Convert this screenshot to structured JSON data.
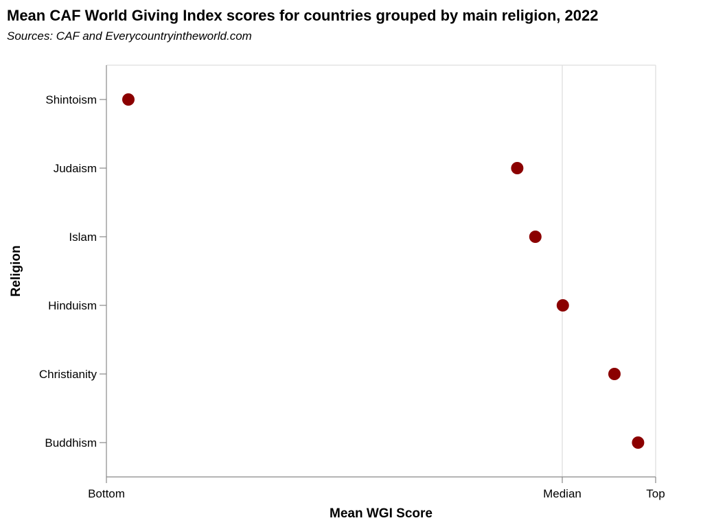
{
  "chart_data": {
    "type": "scatter",
    "title": "Mean CAF World Giving Index scores for countries grouped by main religion, 2022",
    "subtitle": "Sources: CAF and Everycountryintheworld.com",
    "xlabel": "Mean WGI Score",
    "ylabel": "Religion",
    "x_ticks": [
      {
        "label": "Bottom",
        "value": 0
      },
      {
        "label": "Median",
        "value": 0.83
      },
      {
        "label": "Top",
        "value": 1
      }
    ],
    "xlim": [
      0,
      1
    ],
    "grid": {
      "x": [
        "Median",
        "Top"
      ],
      "y": false
    },
    "point_color": "#8b0000",
    "categories": [
      "Shintoism",
      "Judaism",
      "Islam",
      "Hinduism",
      "Christianity",
      "Buddhism"
    ],
    "points": [
      {
        "religion": "Shintoism",
        "x": 0.04
      },
      {
        "religion": "Judaism",
        "x": 0.748
      },
      {
        "religion": "Islam",
        "x": 0.781
      },
      {
        "religion": "Hinduism",
        "x": 0.831
      },
      {
        "religion": "Christianity",
        "x": 0.925
      },
      {
        "religion": "Buddhism",
        "x": 0.968
      }
    ]
  }
}
